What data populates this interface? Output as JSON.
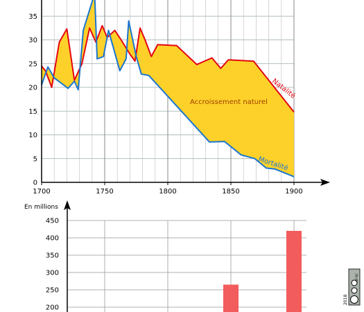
{
  "chart_data": [
    {
      "type": "line",
      "xlim": [
        1700,
        1900
      ],
      "ylim": [
        0,
        38
      ],
      "x_ticks": [
        "1700",
        "1750",
        "1800",
        "1850",
        "1900"
      ],
      "y_ticks": [
        "0",
        "5",
        "10",
        "15",
        "20",
        "25",
        "30",
        "35"
      ],
      "grid": true,
      "series": [
        {
          "name": "Natalité",
          "color": "#e30613",
          "points": [
            [
              1700,
              24.5
            ],
            [
              1703,
              23.5
            ],
            [
              1708,
              20.0
            ],
            [
              1714,
              29.5
            ],
            [
              1720,
              32.3
            ],
            [
              1726,
              21.5
            ],
            [
              1732,
              25.0
            ],
            [
              1738,
              32.5
            ],
            [
              1743,
              29.5
            ],
            [
              1748,
              33.0
            ],
            [
              1752,
              30.5
            ],
            [
              1758,
              32.0
            ],
            [
              1763,
              30.0
            ],
            [
              1770,
              27.0
            ],
            [
              1774,
              25.5
            ],
            [
              1778,
              32.5
            ],
            [
              1782,
              30.0
            ],
            [
              1787,
              26.5
            ],
            [
              1792,
              29.0
            ],
            [
              1807,
              28.8
            ],
            [
              1823,
              24.8
            ],
            [
              1835,
              26.2
            ],
            [
              1842,
              24.0
            ],
            [
              1848,
              25.8
            ],
            [
              1868,
              25.5
            ],
            [
              1900,
              14.8
            ]
          ]
        },
        {
          "name": "Mortalité",
          "color": "#1a75cf",
          "points": [
            [
              1700,
              20.5
            ],
            [
              1705,
              24.3
            ],
            [
              1710,
              22.0
            ],
            [
              1721,
              19.8
            ],
            [
              1726,
              21.3
            ],
            [
              1729,
              19.5
            ],
            [
              1733,
              32.0
            ],
            [
              1740,
              38.0
            ],
            [
              1742,
              40.0
            ],
            [
              1744,
              26.0
            ],
            [
              1749,
              26.5
            ],
            [
              1753,
              32.0
            ],
            [
              1762,
              23.5
            ],
            [
              1767,
              26.0
            ],
            [
              1769,
              34.0
            ],
            [
              1775,
              26.5
            ],
            [
              1779,
              22.8
            ],
            [
              1785,
              22.5
            ],
            [
              1833,
              8.5
            ],
            [
              1845,
              8.6
            ],
            [
              1858,
              5.8
            ],
            [
              1869,
              5.0
            ],
            [
              1878,
              3.0
            ],
            [
              1885,
              2.8
            ],
            [
              1900,
              1.2
            ]
          ]
        }
      ],
      "fill_color": "#fdd12a",
      "fill_label": "Accroissement naturel",
      "fill_label_color": "#a04000"
    },
    {
      "type": "bar",
      "ylabel": "En millions",
      "ylim": [
        200,
        450
      ],
      "y_ticks": [
        "200",
        "250",
        "300",
        "350",
        "400",
        "450"
      ],
      "grid": true,
      "bars": [
        {
          "x": 1850,
          "value": 265
        },
        {
          "x": 1900,
          "value": 420
        }
      ],
      "color": "#f25c5c"
    }
  ],
  "license_text": "BY NC",
  "license_year": "2018"
}
